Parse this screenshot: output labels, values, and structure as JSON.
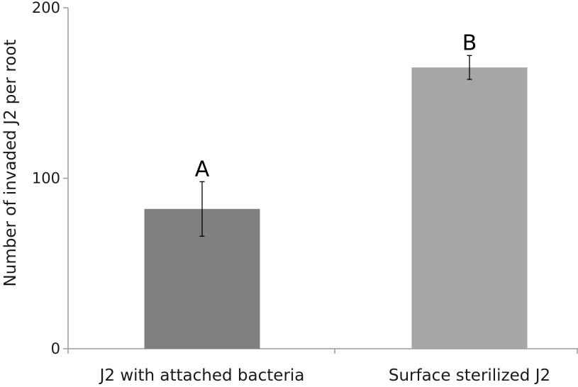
{
  "chart_data": {
    "type": "bar",
    "title": "",
    "xlabel": "",
    "ylabel": "Number of invaded J2 per root",
    "ylim": [
      0,
      200
    ],
    "yticks": [
      0,
      100,
      200
    ],
    "grid": false,
    "categories": [
      "J2 with attached bacteria",
      "Surface sterilized J2"
    ],
    "values": [
      82,
      165
    ],
    "error_low": [
      66,
      158
    ],
    "error_high": [
      98,
      172
    ],
    "significance_labels": [
      "A",
      "B"
    ],
    "colors": [
      "#808080",
      "#a6a6a6"
    ]
  }
}
